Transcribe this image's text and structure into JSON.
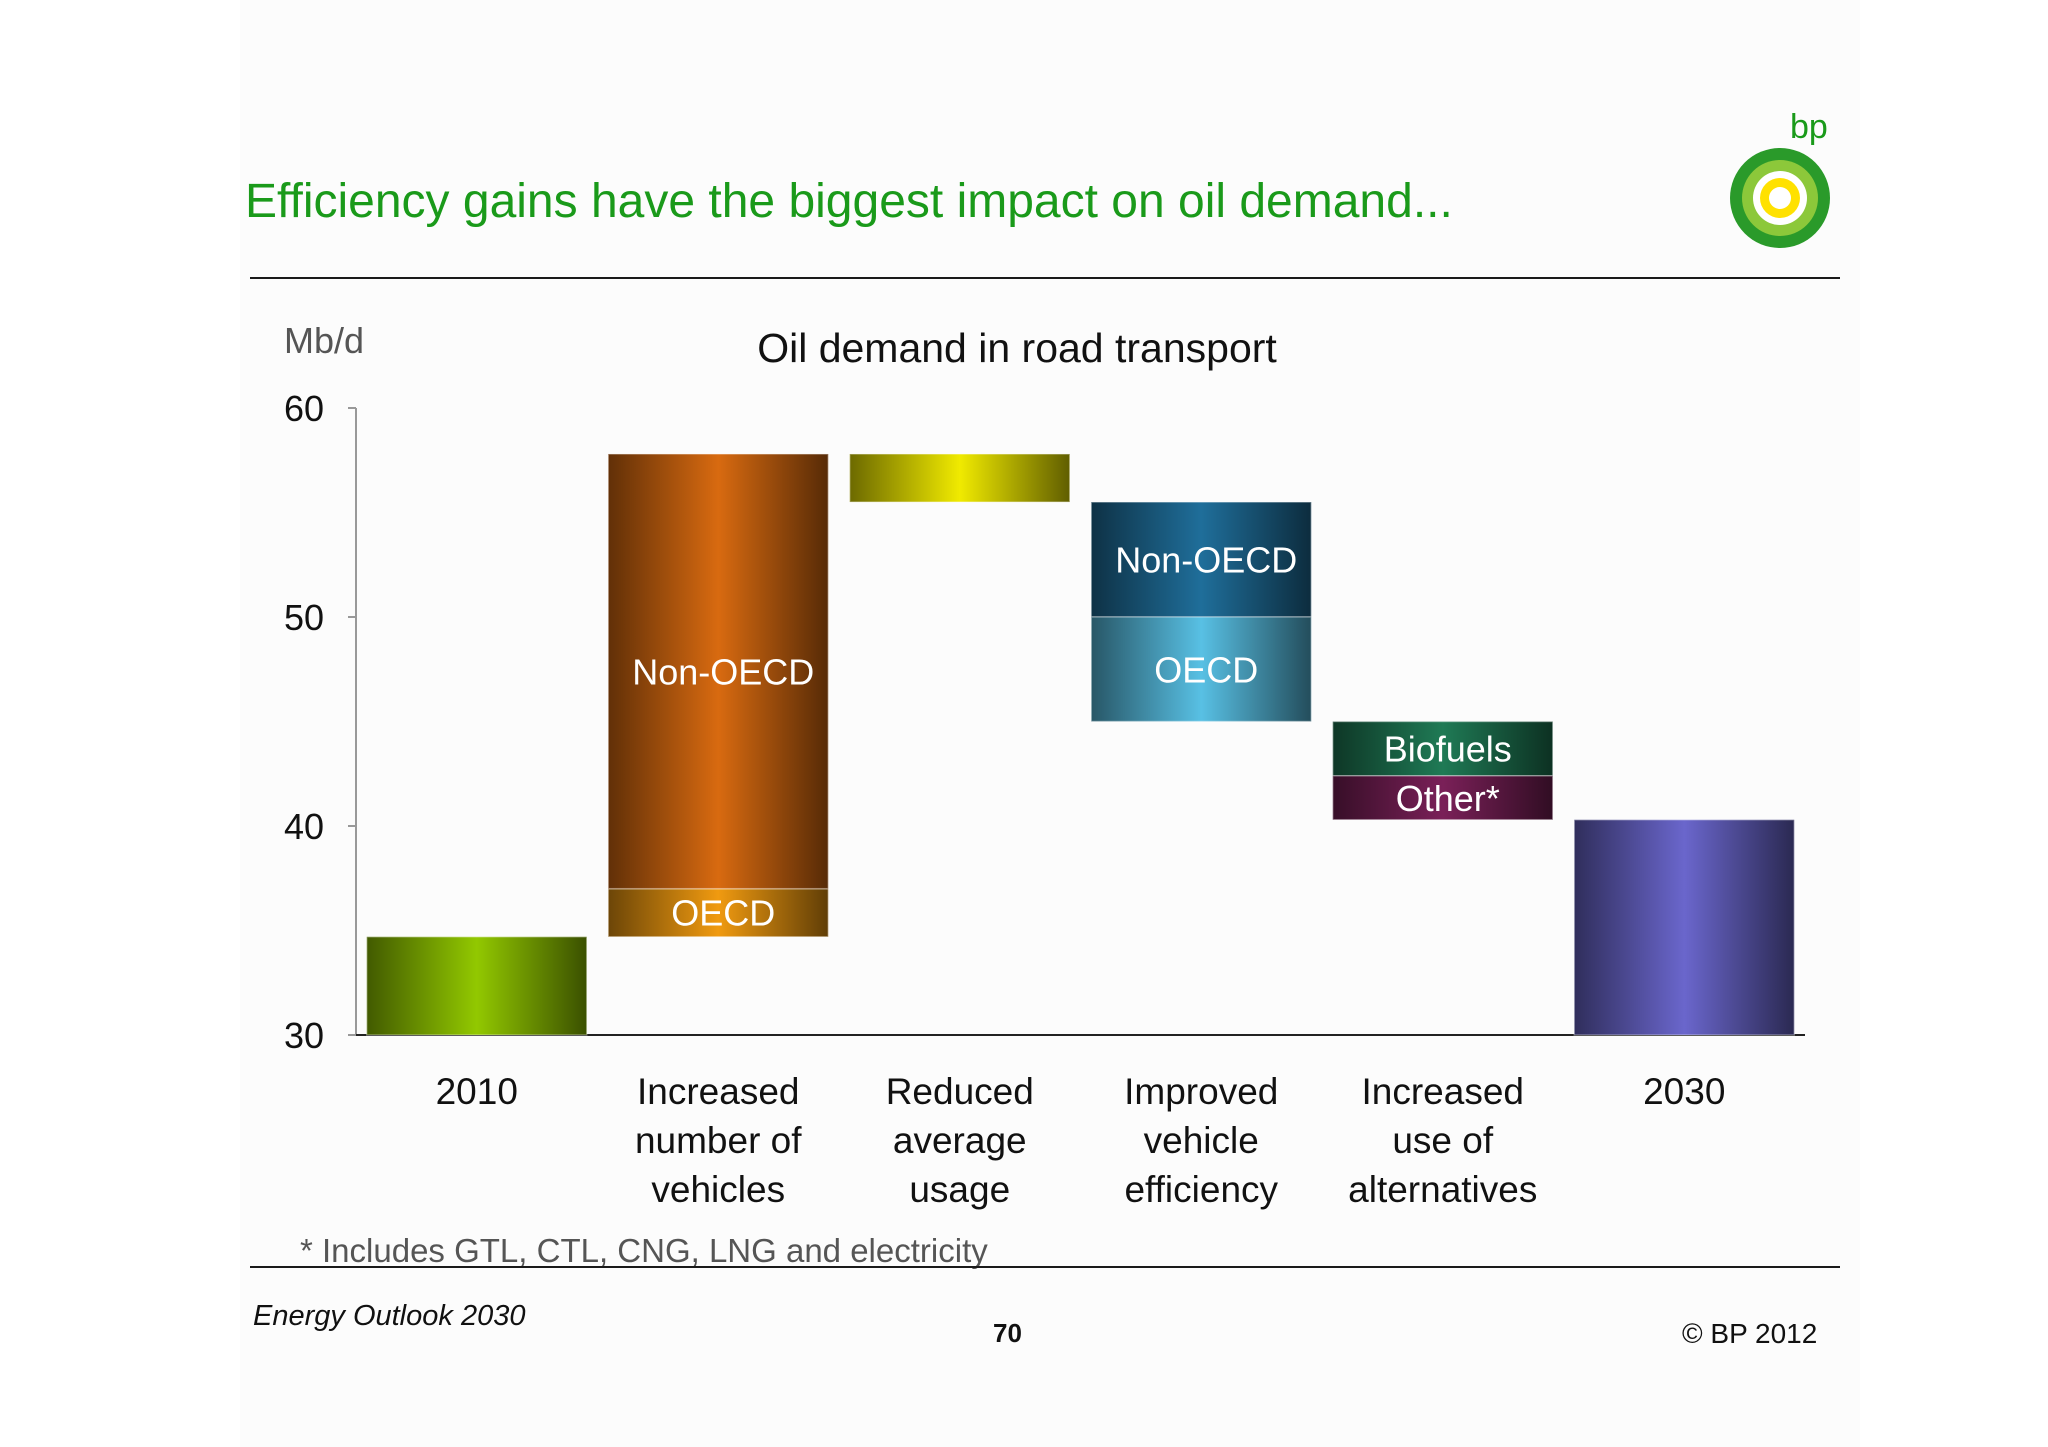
{
  "page": {
    "headline": "Efficiency gains have the biggest impact on oil demand...",
    "brand": "bp",
    "footnote": "* Includes GTL, CTL, CNG, LNG and electricity",
    "footer_left": "Energy Outlook 2030",
    "footer_page": "70",
    "footer_right": "© BP 2012"
  },
  "chart_data": {
    "type": "bar",
    "title": "Oil demand in road transport",
    "ylabel": "Mb/d",
    "xlabel": "",
    "ylim": [
      30,
      60
    ],
    "yticks": [
      30,
      40,
      50,
      60
    ],
    "grid": false,
    "categories": [
      [
        "2010"
      ],
      [
        "Increased",
        "number of",
        "vehicles"
      ],
      [
        "Reduced",
        "average",
        "usage"
      ],
      [
        "Improved",
        "vehicle",
        "efficiency"
      ],
      [
        "Increased",
        "use of",
        "alternatives"
      ],
      [
        "2030"
      ]
    ],
    "bars": [
      {
        "category": 0,
        "segments": [
          {
            "label": "",
            "from": 30,
            "to": 34.7,
            "color": "#92c800"
          }
        ]
      },
      {
        "category": 1,
        "segments": [
          {
            "label": "OECD",
            "from": 34.7,
            "to": 37.0,
            "color": "#f09a10"
          },
          {
            "label": "Non-OECD",
            "from": 37.0,
            "to": 57.8,
            "color": "#d86a10"
          }
        ]
      },
      {
        "category": 2,
        "segments": [
          {
            "label": "",
            "from": 55.5,
            "to": 57.8,
            "color": "#f0ea00"
          }
        ]
      },
      {
        "category": 3,
        "segments": [
          {
            "label": "Non-OECD",
            "from": 50.0,
            "to": 55.5,
            "color": "#1f6e9a"
          },
          {
            "label": "OECD",
            "from": 45.0,
            "to": 50.0,
            "color": "#58c0e4"
          }
        ]
      },
      {
        "category": 4,
        "segments": [
          {
            "label": "Biofuels",
            "from": 42.4,
            "to": 45.0,
            "color": "#1f7a55"
          },
          {
            "label": "Other*",
            "from": 40.3,
            "to": 42.4,
            "color": "#7a2058"
          }
        ]
      },
      {
        "category": 5,
        "segments": [
          {
            "label": "",
            "from": 30,
            "to": 40.3,
            "color": "#6a66cc"
          }
        ]
      }
    ]
  }
}
